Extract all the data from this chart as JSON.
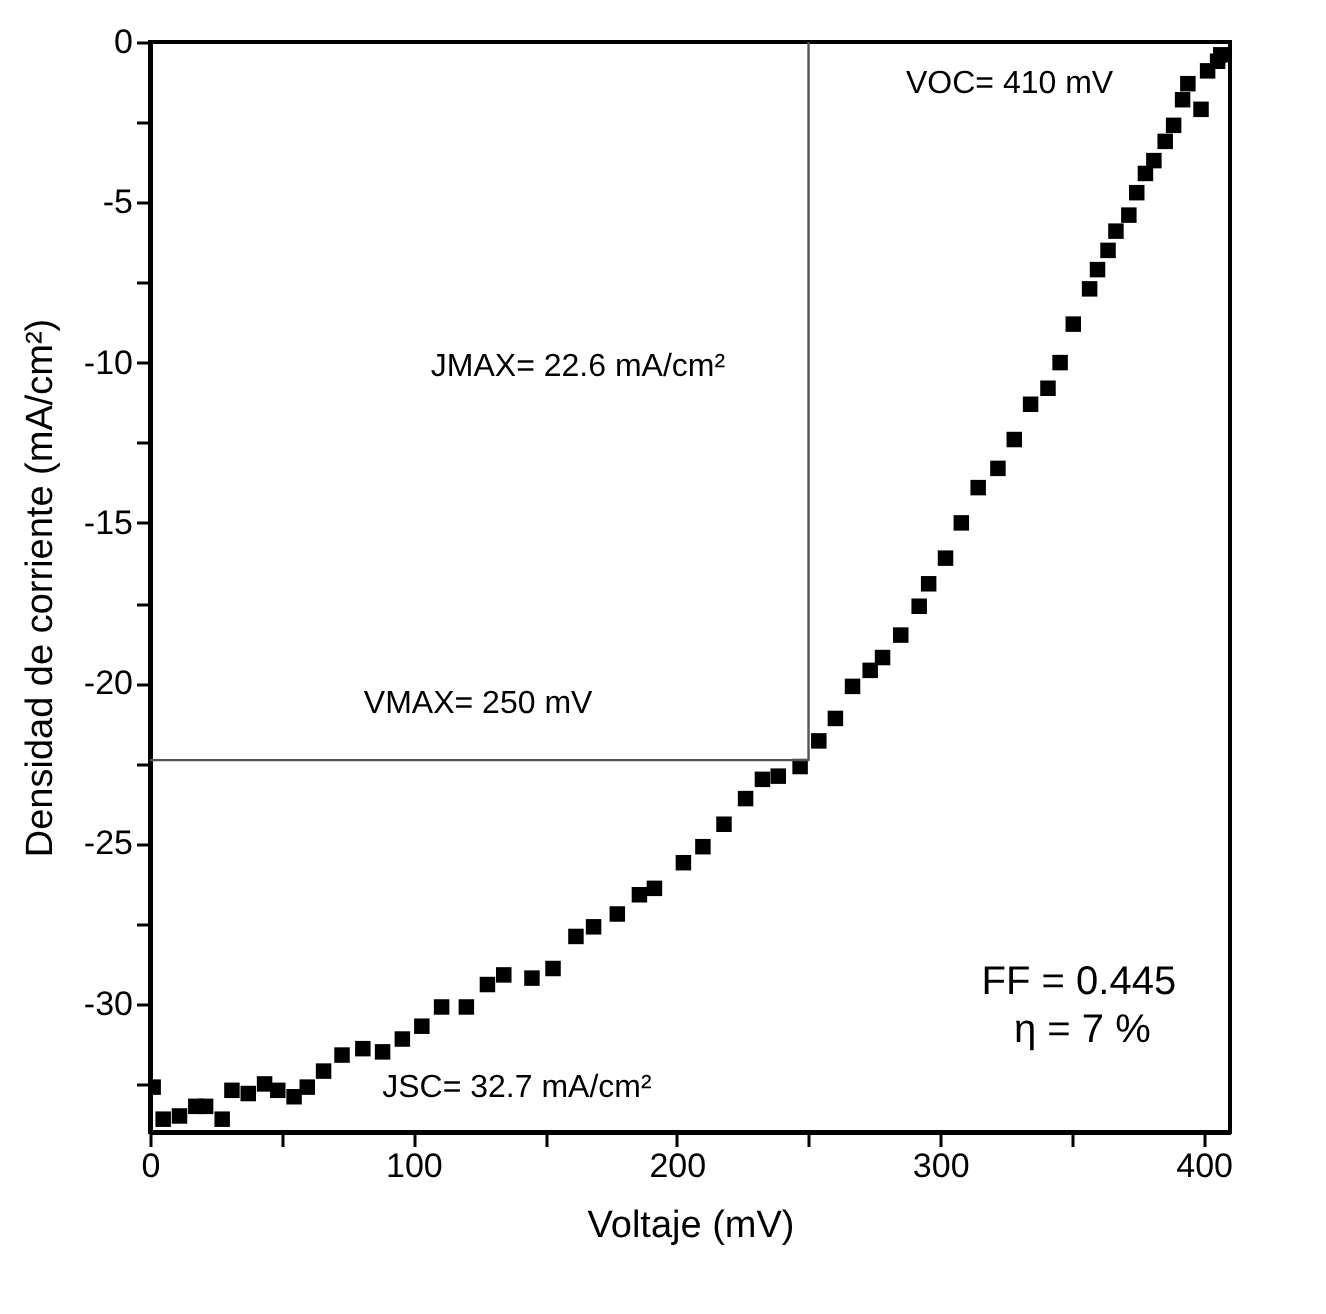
{
  "chart_data": {
    "type": "scatter",
    "xlabel": "Voltaje (mV)",
    "ylabel": "Densidad de corriente (mA/cm²)",
    "xlim": [
      0,
      410
    ],
    "ylim": [
      -34,
      0
    ],
    "xticks": [
      0,
      {
        "value": 50,
        "label": null
      },
      100,
      {
        "value": 150,
        "label": null
      },
      200,
      {
        "value": 250,
        "label": null
      },
      300,
      {
        "value": 350,
        "label": null
      },
      400
    ],
    "yticks": [
      0,
      {
        "value": -2.5,
        "label": null
      },
      -5,
      {
        "value": -7.5,
        "label": null
      },
      -10,
      {
        "value": -12.5,
        "label": null
      },
      -15,
      {
        "value": -17.5,
        "label": null
      },
      -20,
      {
        "value": -22.5,
        "label": null
      },
      -25,
      {
        "value": -27.5,
        "label": null
      },
      -30,
      {
        "value": -32.5,
        "label": null
      }
    ],
    "grid": false,
    "marker": "square",
    "series": [
      {
        "color": "#000000",
        "x": [
          1.2,
          5,
          11.2,
          17.4,
          21.1,
          27.4,
          31.1,
          37.3,
          43.5,
          48.5,
          54.7,
          59.7,
          65.9,
          72.9,
          80.8,
          88.3,
          95.8,
          103.2,
          110.7,
          120.1,
          128.1,
          134.3,
          145,
          153,
          161.7,
          168.4,
          177.4,
          185.8,
          191.5,
          202.5,
          209.9,
          217.9,
          226.1,
          232.5,
          238.5,
          246.8,
          253.9,
          260.2,
          266.7,
          273.4,
          278.1,
          285,
          292,
          295.6,
          302,
          308,
          314.4,
          321.9,
          328.1,
          334.3,
          340.9,
          345.5,
          350.5,
          356.7,
          359.7,
          363.7,
          366.7,
          371.6,
          374.6,
          377.9,
          381.1,
          385.4,
          388.6,
          392,
          394,
          399,
          401.5,
          405.3,
          406.5
        ],
        "values": [
          -32.6,
          -33.6,
          -33.5,
          -33.2,
          -33.2,
          -33.6,
          -32.7,
          -32.8,
          -32.5,
          -32.7,
          -32.9,
          -32.6,
          -32.1,
          -31.6,
          -31.4,
          -31.5,
          -31.1,
          -30.7,
          -30.1,
          -30.1,
          -29.4,
          -29.1,
          -29.2,
          -28.9,
          -27.9,
          -27.6,
          -27.2,
          -26.6,
          -26.4,
          -25.6,
          -25.1,
          -24.4,
          -23.6,
          -23.0,
          -22.9,
          -22.6,
          -21.8,
          -21.1,
          -20.1,
          -19.6,
          -19.2,
          -18.5,
          -17.6,
          -16.9,
          -16.1,
          -15.0,
          -13.9,
          -13.3,
          -12.4,
          -11.3,
          -10.8,
          -10.0,
          -8.8,
          -7.7,
          -7.1,
          -6.5,
          -5.9,
          -5.4,
          -4.7,
          -4.1,
          -3.7,
          -3.1,
          -2.6,
          -1.8,
          -1.3,
          -2.1,
          -0.9,
          -0.6,
          -0.4
        ]
      },
      {
        "type": "line",
        "color": "#555555",
        "marker": "none",
        "line_style": "solid",
        "x": [
          0,
          250,
          250
        ],
        "values": [
          -22.4,
          -22.4,
          0
        ]
      }
    ],
    "annotations": [
      "VOC= 410 mV",
      "JMAX= 22.6 mA/cm²",
      "VMAX= 250 mV",
      "JSC= 32.7  mA/cm²",
      "FF = 0.445",
      "η = 7 %"
    ]
  }
}
